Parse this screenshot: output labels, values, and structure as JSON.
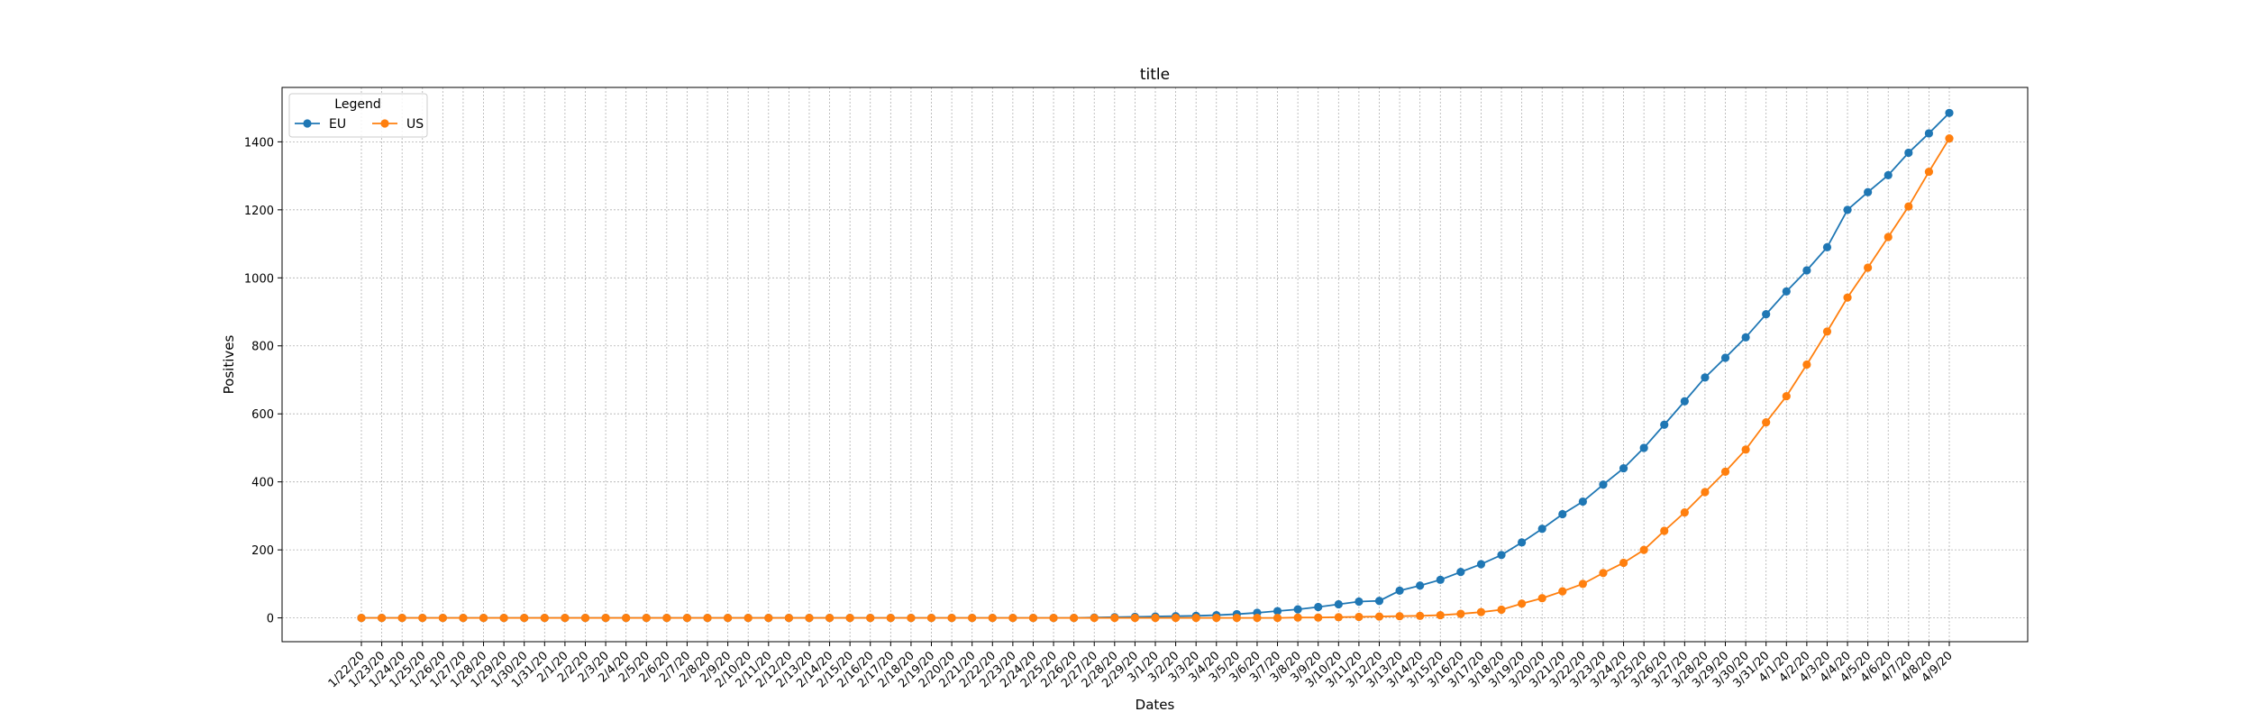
{
  "chart_data": {
    "type": "line",
    "title": "title",
    "xlabel": "Dates",
    "ylabel": "Positives",
    "ylim": [
      -70,
      1560
    ],
    "yticks": [
      0,
      200,
      400,
      600,
      800,
      1000,
      1200,
      1400
    ],
    "grid": true,
    "legend": {
      "title": "Legend",
      "placement": "top-left",
      "columns": 2
    },
    "categories": [
      "1/22/20",
      "1/23/20",
      "1/24/20",
      "1/25/20",
      "1/26/20",
      "1/27/20",
      "1/28/20",
      "1/29/20",
      "1/30/20",
      "1/31/20",
      "2/1/20",
      "2/2/20",
      "2/3/20",
      "2/4/20",
      "2/5/20",
      "2/6/20",
      "2/7/20",
      "2/8/20",
      "2/9/20",
      "2/10/20",
      "2/11/20",
      "2/12/20",
      "2/13/20",
      "2/14/20",
      "2/15/20",
      "2/16/20",
      "2/17/20",
      "2/18/20",
      "2/19/20",
      "2/20/20",
      "2/21/20",
      "2/22/20",
      "2/23/20",
      "2/24/20",
      "2/25/20",
      "2/26/20",
      "2/27/20",
      "2/28/20",
      "2/29/20",
      "3/1/20",
      "3/2/20",
      "3/3/20",
      "3/4/20",
      "3/5/20",
      "3/6/20",
      "3/7/20",
      "3/8/20",
      "3/9/20",
      "3/10/20",
      "3/11/20",
      "3/12/20",
      "3/13/20",
      "3/14/20",
      "3/15/20",
      "3/16/20",
      "3/17/20",
      "3/18/20",
      "3/19/20",
      "3/20/20",
      "3/21/20",
      "3/22/20",
      "3/23/20",
      "3/24/20",
      "3/25/20",
      "3/26/20",
      "3/27/20",
      "3/28/20",
      "3/29/20",
      "3/30/20",
      "3/31/20",
      "4/1/20",
      "4/2/20",
      "4/3/20",
      "4/4/20",
      "4/5/20",
      "4/6/20",
      "4/7/20",
      "4/8/20",
      "4/9/20"
    ],
    "series": [
      {
        "name": "EU",
        "color": "#1f77b4",
        "values": [
          0,
          0,
          0,
          0,
          0,
          0,
          0,
          0,
          0,
          0,
          0,
          0,
          0,
          0,
          0,
          0,
          0,
          0,
          0,
          0,
          0,
          0,
          0,
          0,
          0,
          0,
          0,
          0,
          0,
          0,
          0,
          0,
          0,
          0,
          0,
          0,
          1,
          2,
          3,
          4,
          5,
          6,
          8,
          11,
          15,
          20,
          25,
          32,
          40,
          48,
          50,
          80,
          95,
          112,
          135,
          158,
          185,
          222,
          262,
          305,
          342,
          392,
          440,
          500,
          568,
          637,
          707,
          765,
          825,
          893,
          960,
          1022,
          1090,
          1200,
          1252,
          1302,
          1368,
          1425,
          1485
        ]
      },
      {
        "name": "US",
        "color": "#ff7f0e",
        "values": [
          0,
          0,
          0,
          0,
          0,
          0,
          0,
          0,
          0,
          0,
          0,
          0,
          0,
          0,
          0,
          0,
          0,
          0,
          0,
          0,
          0,
          0,
          0,
          0,
          0,
          0,
          0,
          0,
          0,
          0,
          0,
          0,
          0,
          0,
          0,
          0,
          0,
          0,
          0,
          0,
          0,
          0,
          0,
          0,
          0,
          0,
          1,
          1,
          2,
          3,
          4,
          5,
          6,
          8,
          12,
          17,
          24,
          42,
          58,
          78,
          100,
          132,
          162,
          200,
          256,
          310,
          370,
          430,
          495,
          575,
          652,
          745,
          842,
          942,
          1030,
          1120,
          1210,
          1312,
          1410
        ]
      }
    ]
  }
}
